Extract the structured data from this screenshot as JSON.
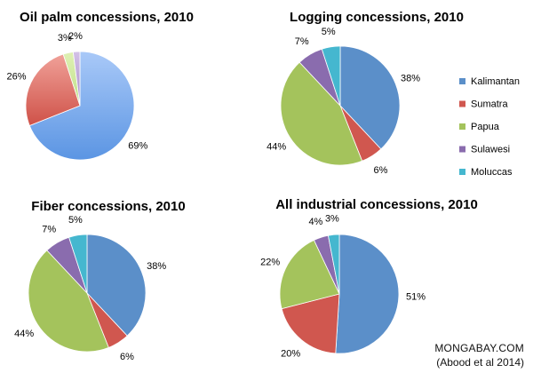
{
  "chart_data": [
    {
      "type": "pie",
      "title": "Oil palm concessions, 2010",
      "series": [
        {
          "labels": [
            "Kalimantan",
            "Sumatra",
            "Papua",
            "Sulawesi",
            "Moluccas"
          ],
          "values": [
            69,
            26,
            3,
            2,
            0
          ],
          "value_labels": [
            "69%",
            "26%",
            "3%",
            "2%",
            ""
          ]
        }
      ],
      "style": "gradient-3d"
    },
    {
      "type": "pie",
      "title": "Logging concessions, 2010",
      "series": [
        {
          "labels": [
            "Kalimantan",
            "Sumatra",
            "Papua",
            "Sulawesi",
            "Moluccas"
          ],
          "values": [
            38,
            6,
            44,
            7,
            5
          ],
          "value_labels": [
            "38%",
            "6%",
            "44%",
            "7%",
            "5%"
          ]
        }
      ],
      "style": "flat"
    },
    {
      "type": "pie",
      "title": "Fiber concessions, 2010",
      "series": [
        {
          "labels": [
            "Kalimantan",
            "Sumatra",
            "Papua",
            "Sulawesi",
            "Moluccas"
          ],
          "values": [
            38,
            6,
            44,
            7,
            5
          ],
          "value_labels": [
            "38%",
            "6%",
            "44%",
            "7%",
            "5%"
          ]
        }
      ],
      "style": "flat"
    },
    {
      "type": "pie",
      "title": "All industrial concessions, 2010",
      "series": [
        {
          "labels": [
            "Kalimantan",
            "Sumatra",
            "Papua",
            "Sulawesi",
            "Moluccas"
          ],
          "values": [
            51,
            20,
            22,
            4,
            3
          ],
          "value_labels": [
            "51%",
            "20%",
            "22%",
            "4%",
            "3%"
          ]
        }
      ],
      "style": "flat"
    }
  ],
  "legend": {
    "placement": "right",
    "items": [
      {
        "label": "Kalimantan",
        "color": "#5b8fc9"
      },
      {
        "label": "Sumatra",
        "color": "#d0574f"
      },
      {
        "label": "Papua",
        "color": "#a4c35c"
      },
      {
        "label": "Sulawesi",
        "color": "#8a6cae"
      },
      {
        "label": "Moluccas",
        "color": "#45b7cf"
      }
    ]
  },
  "gradient_colors": {
    "Kalimantan": [
      "#a9c9f8",
      "#5b95e3"
    ],
    "Sumatra": [
      "#f0a199",
      "#cf5148"
    ],
    "Papua": [
      "#dff0b4",
      "#bfe189"
    ],
    "Sulawesi": [
      "#d3c1e7",
      "#a68bc8"
    ]
  },
  "credits": {
    "site": "MONGABAY.COM",
    "source": "(Abood et al 2014)"
  }
}
